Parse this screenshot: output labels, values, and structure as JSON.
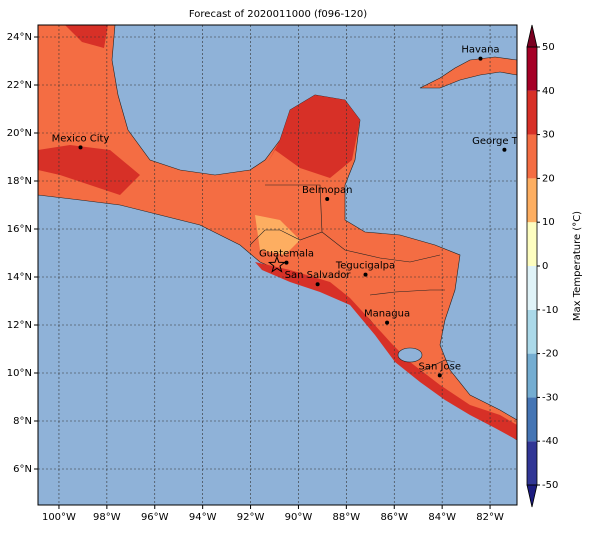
{
  "map": {
    "title": "Forecast of 2020011000 (f096-120)",
    "xlim": [
      -100.875,
      -80.875
    ],
    "ylim": [
      4.5,
      24.5
    ],
    "xticks": [
      {
        "value": -100,
        "label": "100°W"
      },
      {
        "value": -98,
        "label": "98°W"
      },
      {
        "value": -96,
        "label": "96°W"
      },
      {
        "value": -94,
        "label": "94°W"
      },
      {
        "value": -92,
        "label": "92°W"
      },
      {
        "value": -90,
        "label": "90°W"
      },
      {
        "value": -88,
        "label": "88°W"
      },
      {
        "value": -86,
        "label": "86°W"
      },
      {
        "value": -84,
        "label": "84°W"
      },
      {
        "value": -82,
        "label": "82°W"
      }
    ],
    "yticks": [
      {
        "value": 6,
        "label": "6°N"
      },
      {
        "value": 8,
        "label": "8°N"
      },
      {
        "value": 10,
        "label": "10°N"
      },
      {
        "value": 12,
        "label": "12°N"
      },
      {
        "value": 14,
        "label": "14°N"
      },
      {
        "value": 16,
        "label": "16°N"
      },
      {
        "value": 18,
        "label": "18°N"
      },
      {
        "value": 20,
        "label": "20°N"
      },
      {
        "value": 22,
        "label": "22°N"
      },
      {
        "value": 24,
        "label": "24°N"
      }
    ],
    "grid": true,
    "cities": [
      {
        "name": "Mexico City",
        "lon": -99.1,
        "lat": 19.4
      },
      {
        "name": "Havana",
        "lon": -82.4,
        "lat": 23.1
      },
      {
        "name": "George Town",
        "lon": -81.4,
        "lat": 19.3
      },
      {
        "name": "Belmopan",
        "lon": -88.8,
        "lat": 17.25
      },
      {
        "name": "Guatemala",
        "lon": -90.5,
        "lat": 14.6
      },
      {
        "name": "San Salvador",
        "lon": -89.2,
        "lat": 13.7
      },
      {
        "name": "Tegucigalpa",
        "lon": -87.2,
        "lat": 14.1
      },
      {
        "name": "Managua",
        "lon": -86.3,
        "lat": 12.1
      },
      {
        "name": "San Jose",
        "lon": -84.1,
        "lat": 9.9
      }
    ],
    "marker": {
      "lon": -90.9,
      "lat": 14.5
    },
    "colorbar": {
      "label": "Max Temperature (°C)",
      "lim": [
        -50,
        50
      ],
      "ticks": [
        -50,
        -40,
        -30,
        -20,
        -10,
        0,
        10,
        20,
        30,
        40,
        50
      ],
      "colors": [
        "#313695",
        "#4575b4",
        "#74add1",
        "#abd9e9",
        "#e0f3f8",
        "#fefec0",
        "#fdae61",
        "#f46d43",
        "#d73027",
        "#a50026"
      ],
      "under_color": "#1c1c80",
      "over_color": "#7a0020"
    }
  }
}
